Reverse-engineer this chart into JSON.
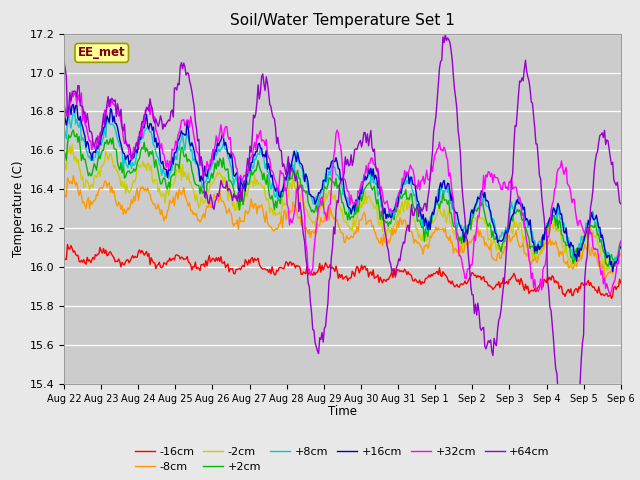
{
  "title": "Soil/Water Temperature Set 1",
  "ylabel": "Temperature (C)",
  "xlabel": "Time",
  "annotation": "EE_met",
  "ylim": [
    15.4,
    17.2
  ],
  "fig_bg": "#e8e8e8",
  "plot_bg": "#cccccc",
  "series_colors": {
    "-16cm": "#ff0000",
    "-8cm": "#ff9900",
    "-2cm": "#cccc00",
    "+2cm": "#00bb00",
    "+8cm": "#00cccc",
    "+16cm": "#0000cc",
    "+32cm": "#ff00ff",
    "+64cm": "#9900cc"
  },
  "xtick_labels": [
    "Aug 22",
    "Aug 23",
    "Aug 24",
    "Aug 25",
    "Aug 26",
    "Aug 27",
    "Aug 28",
    "Aug 29",
    "Aug 30",
    "Aug 31",
    "Sep 1",
    "Sep 2",
    "Sep 3",
    "Sep 4",
    "Sep 5",
    "Sep 6"
  ],
  "ytick_vals": [
    15.4,
    15.6,
    15.8,
    16.0,
    16.2,
    16.4,
    16.6,
    16.8,
    17.0,
    17.2
  ],
  "n_points": 480,
  "legend_order": [
    "-16cm",
    "-8cm",
    "-2cm",
    "+2cm",
    "+8cm",
    "+16cm",
    "+32cm",
    "+64cm"
  ]
}
